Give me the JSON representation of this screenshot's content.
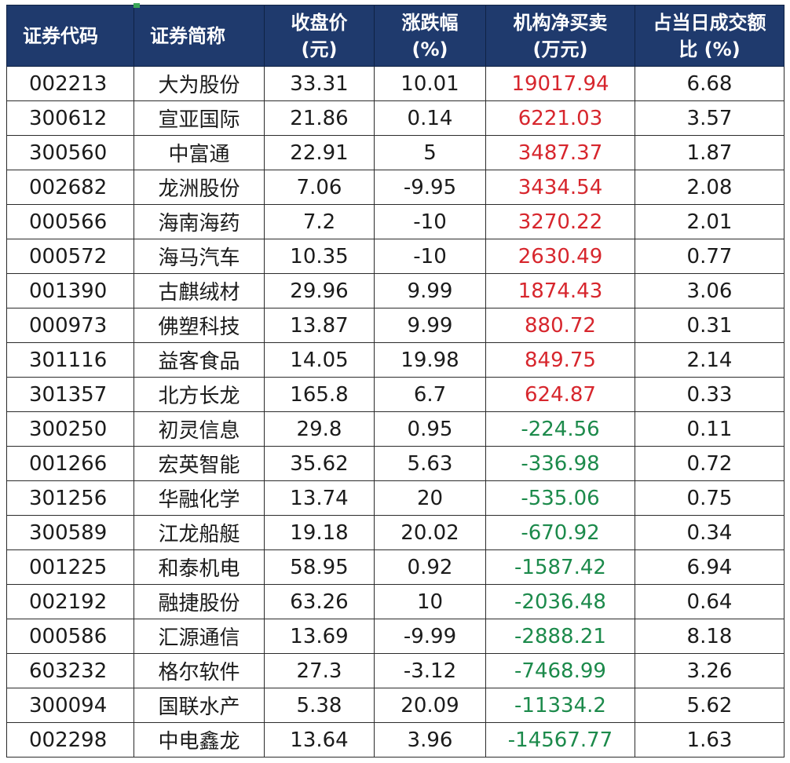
{
  "colors": {
    "header_bg": "#1f3a6d",
    "header_text": "#ffffff",
    "positive": "#d7262d",
    "negative": "#1c8a4b"
  },
  "table": {
    "headers": [
      [
        "证券代码"
      ],
      [
        "证券简称"
      ],
      [
        "收盘价",
        "(元)"
      ],
      [
        "涨跌幅",
        "(%)"
      ],
      [
        "机构净买卖",
        "(万元)"
      ],
      [
        "占当日成交额",
        "比 (%)"
      ]
    ],
    "rows": [
      [
        "002213",
        "大为股份",
        "33.31",
        "10.01",
        "19017.94",
        "6.68"
      ],
      [
        "300612",
        "宣亚国际",
        "21.86",
        "0.14",
        "6221.03",
        "3.57"
      ],
      [
        "300560",
        "中富通",
        "22.91",
        "5",
        "3487.37",
        "1.87"
      ],
      [
        "002682",
        "龙洲股份",
        "7.06",
        "-9.95",
        "3434.54",
        "2.08"
      ],
      [
        "000566",
        "海南海药",
        "7.2",
        "-10",
        "3270.22",
        "2.01"
      ],
      [
        "000572",
        "海马汽车",
        "10.35",
        "-10",
        "2630.49",
        "0.77"
      ],
      [
        "001390",
        "古麒绒材",
        "29.96",
        "9.99",
        "1874.43",
        "3.06"
      ],
      [
        "000973",
        "佛塑科技",
        "13.87",
        "9.99",
        "880.72",
        "0.31"
      ],
      [
        "301116",
        "益客食品",
        "14.05",
        "19.98",
        "849.75",
        "2.14"
      ],
      [
        "301357",
        "北方长龙",
        "165.8",
        "6.7",
        "624.87",
        "0.33"
      ],
      [
        "300250",
        "初灵信息",
        "29.8",
        "0.95",
        "-224.56",
        "0.11"
      ],
      [
        "001266",
        "宏英智能",
        "35.62",
        "5.63",
        "-336.98",
        "0.72"
      ],
      [
        "301256",
        "华融化学",
        "13.74",
        "20",
        "-535.06",
        "0.75"
      ],
      [
        "300589",
        "江龙船艇",
        "19.18",
        "20.02",
        "-670.92",
        "0.34"
      ],
      [
        "001225",
        "和泰机电",
        "58.95",
        "0.92",
        "-1587.42",
        "6.94"
      ],
      [
        "002192",
        "融捷股份",
        "63.26",
        "10",
        "-2036.48",
        "0.64"
      ],
      [
        "000586",
        "汇源通信",
        "13.69",
        "-9.99",
        "-2888.21",
        "8.18"
      ],
      [
        "603232",
        "格尔软件",
        "27.3",
        "-3.12",
        "-7468.99",
        "3.26"
      ],
      [
        "300094",
        "国联水产",
        "5.38",
        "20.09",
        "-11334.2",
        "5.62"
      ],
      [
        "002298",
        "中电鑫龙",
        "13.64",
        "3.96",
        "-14567.77",
        "1.63"
      ]
    ]
  }
}
